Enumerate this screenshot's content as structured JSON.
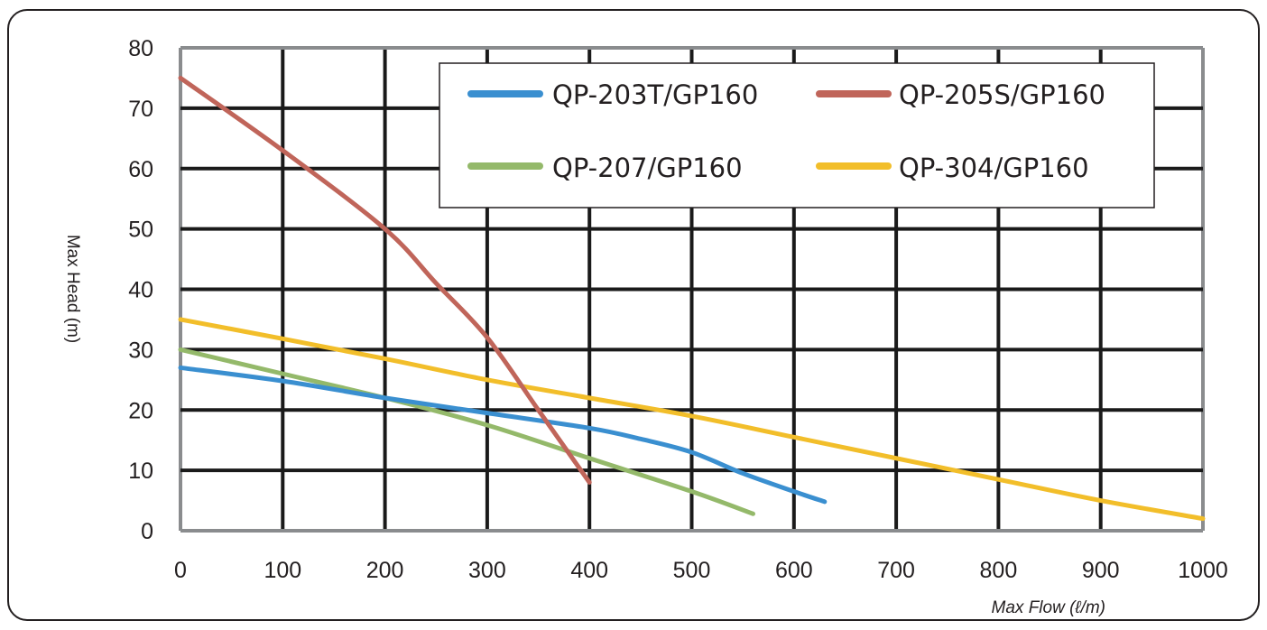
{
  "chart_data": {
    "type": "line",
    "xlabel": "Max Flow (ℓ/m)",
    "ylabel": "Max Head (m)",
    "xlim": [
      0,
      1000
    ],
    "ylim": [
      0,
      80
    ],
    "x_ticks": [
      "0",
      "100",
      "200",
      "300",
      "400",
      "500",
      "600",
      "700",
      "800",
      "900",
      "1000"
    ],
    "y_ticks": [
      "0",
      "10",
      "20",
      "30",
      "40",
      "50",
      "60",
      "70",
      "80"
    ],
    "grid": true,
    "legend_placement": "top-center",
    "series": [
      {
        "name": "QP-203T/GP160",
        "color": "#3a8fd0",
        "x": [
          0,
          100,
          200,
          300,
          400,
          450,
          500,
          550,
          600,
          630
        ],
        "y": [
          27,
          24.8,
          22,
          19.5,
          17,
          15.2,
          13,
          9.5,
          6.5,
          4.8
        ]
      },
      {
        "name": "QP-205S/GP160",
        "color": "#c0655a",
        "x": [
          0,
          100,
          200,
          250,
          300,
          350,
          400
        ],
        "y": [
          75,
          63,
          50,
          41,
          32,
          20,
          8
        ]
      },
      {
        "name": "QP-207/GP160",
        "color": "#94b96a",
        "x": [
          0,
          100,
          200,
          300,
          400,
          500,
          560
        ],
        "y": [
          30,
          26,
          22,
          17.5,
          12,
          6.5,
          2.8
        ]
      },
      {
        "name": "QP-304/GP160",
        "color": "#f2be2a",
        "x": [
          0,
          100,
          200,
          300,
          400,
          500,
          600,
          700,
          800,
          900,
          1000
        ],
        "y": [
          35,
          31.8,
          28.5,
          25,
          22,
          19,
          15.5,
          12,
          8.5,
          5,
          2
        ]
      }
    ]
  }
}
